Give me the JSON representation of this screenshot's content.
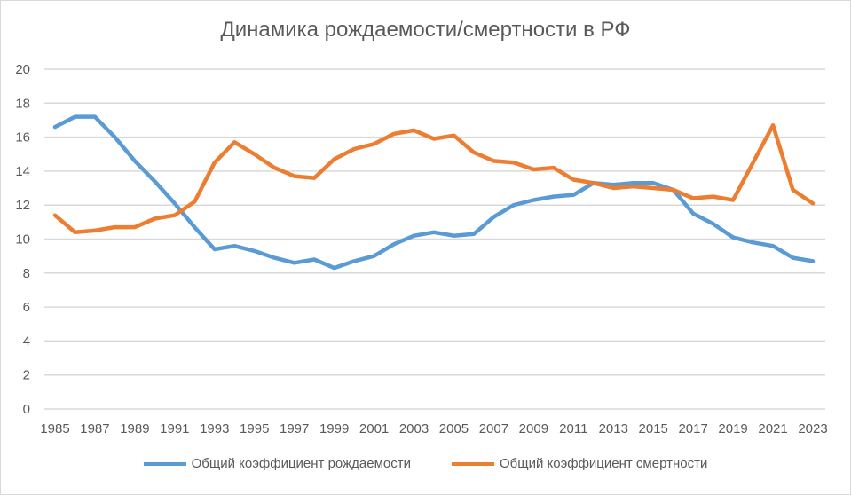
{
  "chart_data": {
    "type": "line",
    "title": "Динамика рождаемости/смертности  в РФ",
    "xlabel": "",
    "ylabel": "",
    "ylim": [
      0,
      20
    ],
    "yticks": [
      "0",
      "2",
      "4",
      "6",
      "8",
      "10",
      "12",
      "14",
      "16",
      "18",
      "20"
    ],
    "grid": true,
    "legend": "bottom",
    "x": [
      1985,
      1986,
      1987,
      1988,
      1989,
      1990,
      1991,
      1992,
      1993,
      1994,
      1995,
      1996,
      1997,
      1998,
      1999,
      2000,
      2001,
      2002,
      2003,
      2004,
      2005,
      2006,
      2007,
      2008,
      2009,
      2010,
      2011,
      2012,
      2013,
      2014,
      2015,
      2016,
      2017,
      2018,
      2019,
      2020,
      2021,
      2022,
      2023
    ],
    "xticks": [
      "1985",
      "1987",
      "1989",
      "1991",
      "1993",
      "1995",
      "1997",
      "1999",
      "2001",
      "2003",
      "2005",
      "2007",
      "2009",
      "2011",
      "2013",
      "2015",
      "2017",
      "2019",
      "2021",
      "2023"
    ],
    "series": [
      {
        "name": "Общий коэффициент рождаемости",
        "color": "#5b9bd5",
        "values": [
          16.6,
          17.2,
          17.2,
          16.0,
          14.6,
          13.4,
          12.1,
          10.7,
          9.4,
          9.6,
          9.3,
          8.9,
          8.6,
          8.8,
          8.3,
          8.7,
          9.0,
          9.7,
          10.2,
          10.4,
          10.2,
          10.3,
          11.3,
          12.0,
          12.3,
          12.5,
          12.6,
          13.3,
          13.2,
          13.3,
          13.3,
          12.9,
          11.5,
          10.9,
          10.1,
          9.8,
          9.6,
          8.9,
          8.7
        ]
      },
      {
        "name": "Общий коэффициент смертности",
        "color": "#ed7d31",
        "values": [
          11.4,
          10.4,
          10.5,
          10.7,
          10.7,
          11.2,
          11.4,
          12.2,
          14.5,
          15.7,
          15.0,
          14.2,
          13.7,
          13.6,
          14.7,
          15.3,
          15.6,
          16.2,
          16.4,
          15.9,
          16.1,
          15.1,
          14.6,
          14.5,
          14.1,
          14.2,
          13.5,
          13.3,
          13.0,
          13.1,
          13.0,
          12.9,
          12.4,
          12.5,
          12.3,
          14.5,
          16.7,
          12.9,
          12.1
        ]
      }
    ]
  }
}
